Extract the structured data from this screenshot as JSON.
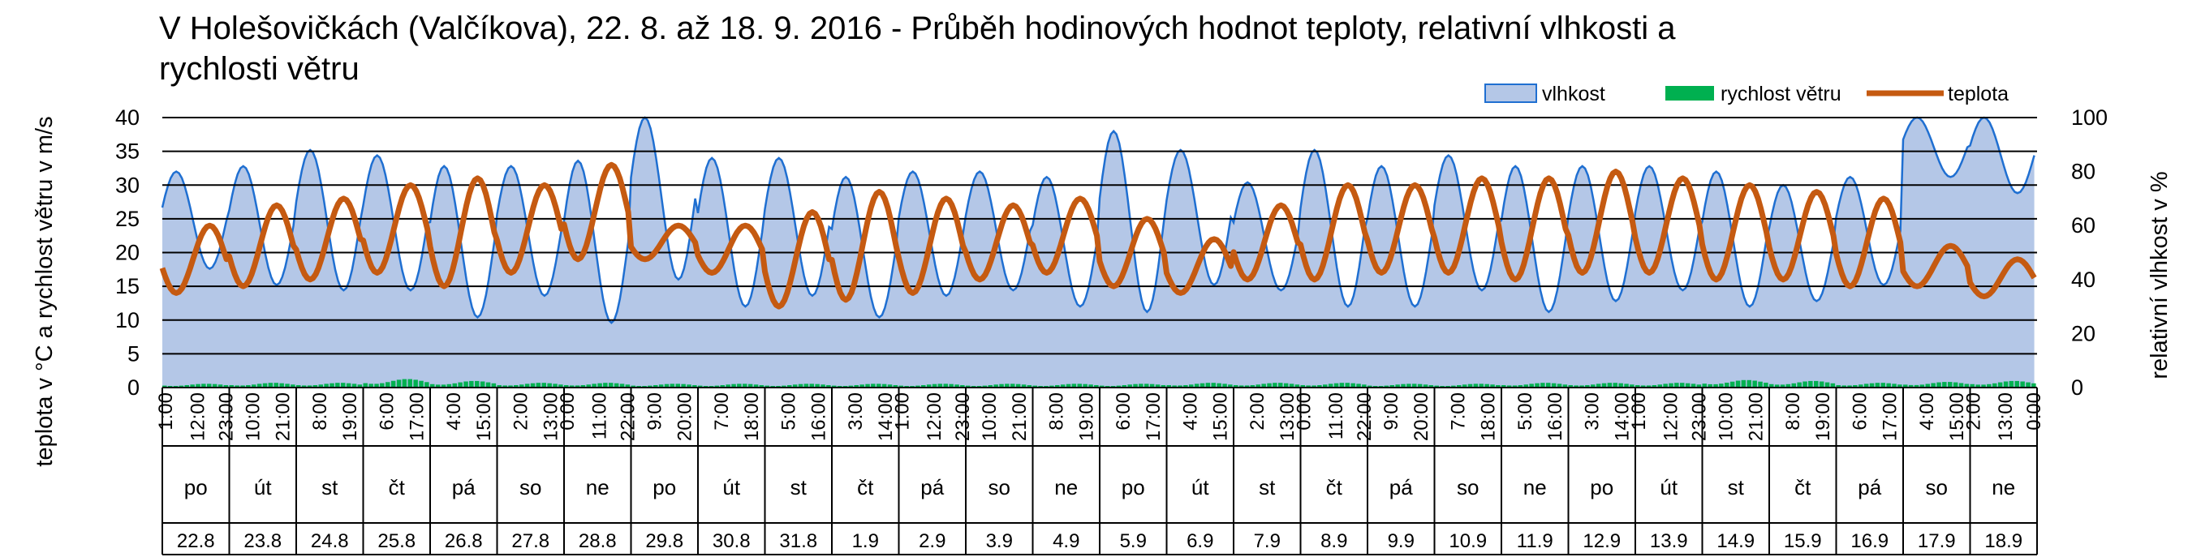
{
  "chart_data": {
    "type": "line",
    "title_line1": "V Holešovičkách  (Valčíkova), 22. 8. až 18. 9. 2016 - Průběh hodinových hodnot teploty, relativní vlhkosti a",
    "title_line2": "rychlosti větru",
    "ylabel_left": "teplota v °C a rychlost větru v m/s",
    "ylabel_right": "relativní vlhkost v %",
    "ylim_left": [
      0,
      40
    ],
    "yticks_left": [
      0,
      5,
      10,
      15,
      20,
      25,
      30,
      35,
      40
    ],
    "ylim_right": [
      0,
      100
    ],
    "yticks_right": [
      0,
      20,
      40,
      60,
      80,
      100
    ],
    "grid": true,
    "legend_placement": "top-right",
    "legend": [
      {
        "key": "vlhkost",
        "label": "vlhkost",
        "color": "#b4c7e7",
        "edge": "#1f6fd1"
      },
      {
        "key": "vitr",
        "label": "rychlost větru",
        "color": "#00b050"
      },
      {
        "key": "teplota",
        "label": "teplota",
        "color": "#c55a11"
      }
    ],
    "days": [
      {
        "weekday": "po",
        "date": "22.8",
        "times": [
          "1:00",
          "12:00",
          "23:00"
        ]
      },
      {
        "weekday": "út",
        "date": "23.8",
        "times": [
          "10:00",
          "21:00"
        ]
      },
      {
        "weekday": "st",
        "date": "24.8",
        "times": [
          "8:00",
          "19:00"
        ]
      },
      {
        "weekday": "čt",
        "date": "25.8",
        "times": [
          "6:00",
          "17:00"
        ]
      },
      {
        "weekday": "pá",
        "date": "26.8",
        "times": [
          "4:00",
          "15:00"
        ]
      },
      {
        "weekday": "so",
        "date": "27.8",
        "times": [
          "2:00",
          "13:00"
        ]
      },
      {
        "weekday": "ne",
        "date": "28.8",
        "times": [
          "0:00",
          "11:00",
          "22:00"
        ]
      },
      {
        "weekday": "po",
        "date": "29.8",
        "times": [
          "9:00",
          "20:00"
        ]
      },
      {
        "weekday": "út",
        "date": "30.8",
        "times": [
          "7:00",
          "18:00"
        ]
      },
      {
        "weekday": "st",
        "date": "31.8",
        "times": [
          "5:00",
          "16:00"
        ]
      },
      {
        "weekday": "čt",
        "date": "1.9",
        "times": [
          "3:00",
          "14:00"
        ]
      },
      {
        "weekday": "pá",
        "date": "2.9",
        "times": [
          "1:00",
          "12:00",
          "23:00"
        ]
      },
      {
        "weekday": "so",
        "date": "3.9",
        "times": [
          "10:00",
          "21:00"
        ]
      },
      {
        "weekday": "ne",
        "date": "4.9",
        "times": [
          "8:00",
          "19:00"
        ]
      },
      {
        "weekday": "po",
        "date": "5.9",
        "times": [
          "6:00",
          "17:00"
        ]
      },
      {
        "weekday": "út",
        "date": "6.9",
        "times": [
          "4:00",
          "15:00"
        ]
      },
      {
        "weekday": "st",
        "date": "7.9",
        "times": [
          "2:00",
          "13:00"
        ]
      },
      {
        "weekday": "čt",
        "date": "8.9",
        "times": [
          "0:00",
          "11:00",
          "22:00"
        ]
      },
      {
        "weekday": "pá",
        "date": "9.9",
        "times": [
          "9:00",
          "20:00"
        ]
      },
      {
        "weekday": "so",
        "date": "10.9",
        "times": [
          "7:00",
          "18:00"
        ]
      },
      {
        "weekday": "ne",
        "date": "11.9",
        "times": [
          "5:00",
          "16:00"
        ]
      },
      {
        "weekday": "po",
        "date": "12.9",
        "times": [
          "3:00",
          "14:00"
        ]
      },
      {
        "weekday": "út",
        "date": "13.9",
        "times": [
          "1:00",
          "12:00",
          "23:00"
        ]
      },
      {
        "weekday": "st",
        "date": "14.9",
        "times": [
          "10:00",
          "21:00"
        ]
      },
      {
        "weekday": "čt",
        "date": "15.9",
        "times": [
          "8:00",
          "19:00"
        ]
      },
      {
        "weekday": "pá",
        "date": "16.9",
        "times": [
          "6:00",
          "17:00"
        ]
      },
      {
        "weekday": "so",
        "date": "17.9",
        "times": [
          "4:00",
          "15:00"
        ]
      },
      {
        "weekday": "ne",
        "date": "18.9",
        "times": [
          "2:00",
          "13:00",
          "0:00"
        ]
      }
    ],
    "series": [
      {
        "key": "vlhkost",
        "name": "vlhkost",
        "axis": "right",
        "daily_max": [
          80,
          82,
          88,
          86,
          82,
          82,
          84,
          100,
          85,
          85,
          78,
          80,
          80,
          78,
          95,
          88,
          76,
          88,
          82,
          86,
          82,
          82,
          82,
          80,
          75,
          78,
          100,
          100
        ],
        "daily_min": [
          44,
          38,
          36,
          36,
          26,
          34,
          24,
          40,
          30,
          34,
          26,
          34,
          36,
          30,
          28,
          38,
          36,
          30,
          30,
          36,
          28,
          32,
          36,
          30,
          32,
          38,
          78,
          72
        ]
      },
      {
        "key": "vitr",
        "name": "rychlost větru",
        "axis": "left",
        "daily_mean": [
          0.4,
          0.5,
          0.5,
          0.9,
          0.7,
          0.5,
          0.5,
          0.4,
          0.4,
          0.4,
          0.4,
          0.4,
          0.4,
          0.4,
          0.4,
          0.5,
          0.5,
          0.5,
          0.4,
          0.4,
          0.5,
          0.5,
          0.5,
          0.8,
          0.7,
          0.5,
          0.6,
          0.7
        ]
      },
      {
        "key": "teplota",
        "name": "teplota",
        "axis": "left",
        "daily_max": [
          24,
          27,
          28,
          30,
          31,
          30,
          33,
          24,
          24,
          26,
          29,
          28,
          27,
          28,
          25,
          22,
          27,
          30,
          30,
          31,
          31,
          32,
          31,
          30,
          29,
          28,
          21,
          19
        ],
        "daily_min": [
          14,
          15,
          16,
          17,
          15,
          17,
          19,
          19,
          17,
          12,
          13,
          14,
          16,
          17,
          15,
          14,
          16,
          16,
          17,
          17,
          16,
          17,
          17,
          16,
          16,
          15,
          15,
          13.5
        ]
      }
    ]
  }
}
